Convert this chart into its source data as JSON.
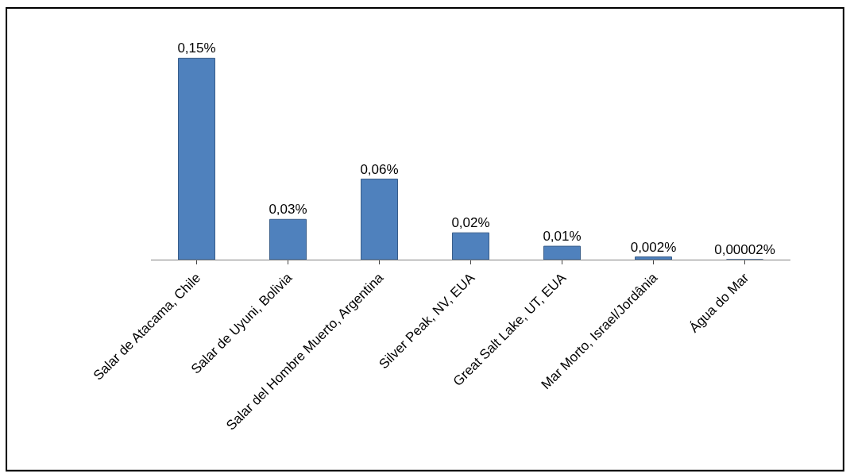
{
  "chart_data": {
    "type": "bar",
    "categories": [
      "Salar de Atacama, Chile",
      "Salar de Uyuni, Bolivia",
      "Salar del Hombre Muerto, Argentina",
      "Silver Peak, NV, EUA",
      "Great Salt Lake, UT, EUA",
      "Mar Morto, Israel/Jordânia",
      "Água do Mar"
    ],
    "values": [
      0.15,
      0.03,
      0.06,
      0.02,
      0.01,
      0.002,
      2e-05
    ],
    "value_labels": [
      "0,15%",
      "0,03%",
      "0,06%",
      "0,02%",
      "0,01%",
      "0,002%",
      "0,00002%"
    ],
    "color": "#4f81bd"
  }
}
